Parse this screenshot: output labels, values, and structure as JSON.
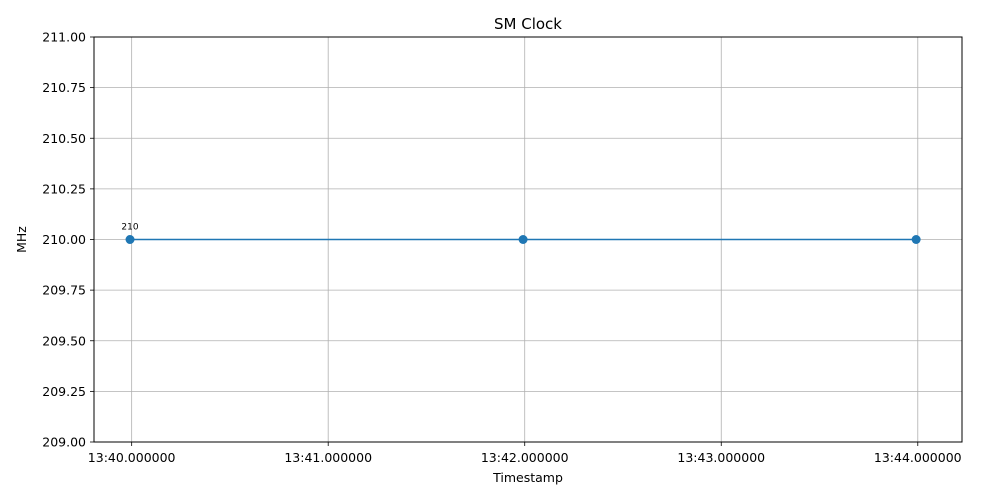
{
  "chart_data": {
    "type": "line",
    "title": "SM Clock",
    "xlabel": "Timestamp",
    "ylabel": "MHz",
    "ylim": [
      209.0,
      211.0
    ],
    "x_ticks": [
      "13:40.000000",
      "13:41.000000",
      "13:42.000000",
      "13:43.000000",
      "13:44.000000"
    ],
    "x_tick_values": [
      2400,
      2460,
      2520,
      2580,
      2640
    ],
    "xlim": [
      2388.5,
      2653.5
    ],
    "y_ticks": [
      "209.00",
      "209.25",
      "209.50",
      "209.75",
      "210.00",
      "210.25",
      "210.50",
      "210.75",
      "211.00"
    ],
    "y_tick_values": [
      209.0,
      209.25,
      209.5,
      209.75,
      210.0,
      210.25,
      210.5,
      210.75,
      211.0
    ],
    "grid": true,
    "series": [
      {
        "x": [
          2399.5,
          2519.5,
          2639.5
        ],
        "y": [
          210,
          210,
          210
        ],
        "color": "#1f77b4",
        "marker": "circle"
      }
    ],
    "annotations": [
      {
        "text": "210",
        "x": 2399.5,
        "y": 210
      }
    ]
  }
}
